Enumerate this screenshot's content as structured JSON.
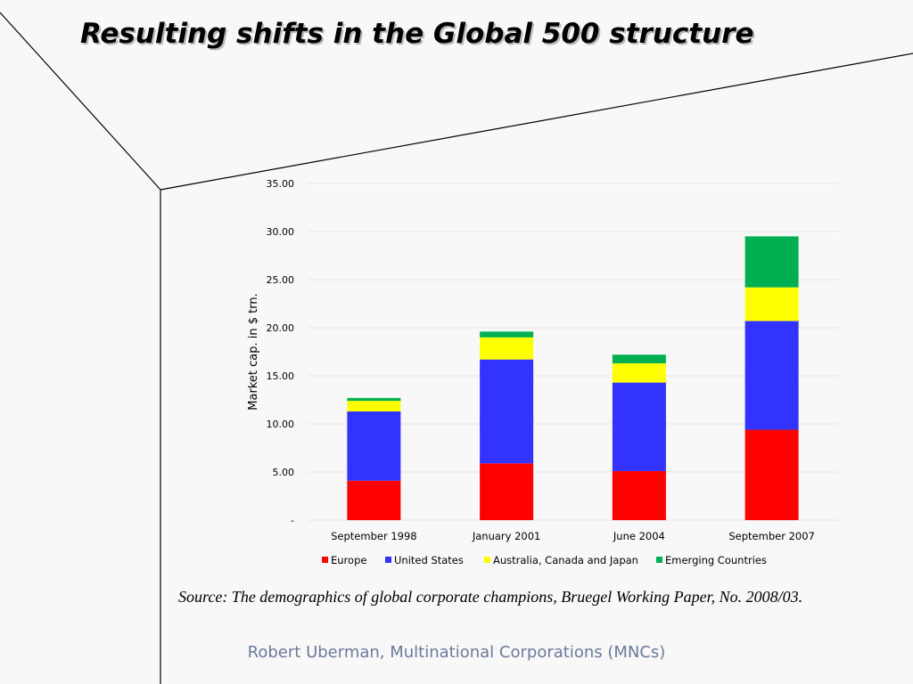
{
  "slide": {
    "title": "Resulting shifts in the Global 500 structure",
    "source": "Source: The demographics of global corporate champions, Bruegel Working Paper, No. 2008/03.",
    "footer": "Robert Uberman, Multinational Corporations (MNCs)"
  },
  "chart_data": {
    "type": "bar",
    "stacked": true,
    "title": "",
    "xlabel": "",
    "ylabel": "Market cap. in $ trn.",
    "ylim": [
      0,
      35
    ],
    "yticks": [
      0,
      5,
      10,
      15,
      20,
      25,
      30,
      35
    ],
    "ytick_labels": [
      "-",
      "5.00",
      "10.00",
      "15.00",
      "20.00",
      "25.00",
      "30.00",
      "35.00"
    ],
    "grid": true,
    "legend_position": "bottom",
    "categories": [
      "September 1998",
      "January 2001",
      "June 2004",
      "September 2007"
    ],
    "series": [
      {
        "name": "Europe",
        "color": "#ff0000",
        "values": [
          4.1,
          5.9,
          5.1,
          9.4
        ]
      },
      {
        "name": "United States",
        "color": "#3333ff",
        "values": [
          7.2,
          10.8,
          9.2,
          11.3
        ]
      },
      {
        "name": "Australia, Canada and Japan",
        "color": "#ffff00",
        "values": [
          1.1,
          2.3,
          2.0,
          3.5
        ]
      },
      {
        "name": "Emerging Countries",
        "color": "#00b050",
        "values": [
          0.3,
          0.6,
          0.9,
          5.3
        ]
      }
    ]
  }
}
